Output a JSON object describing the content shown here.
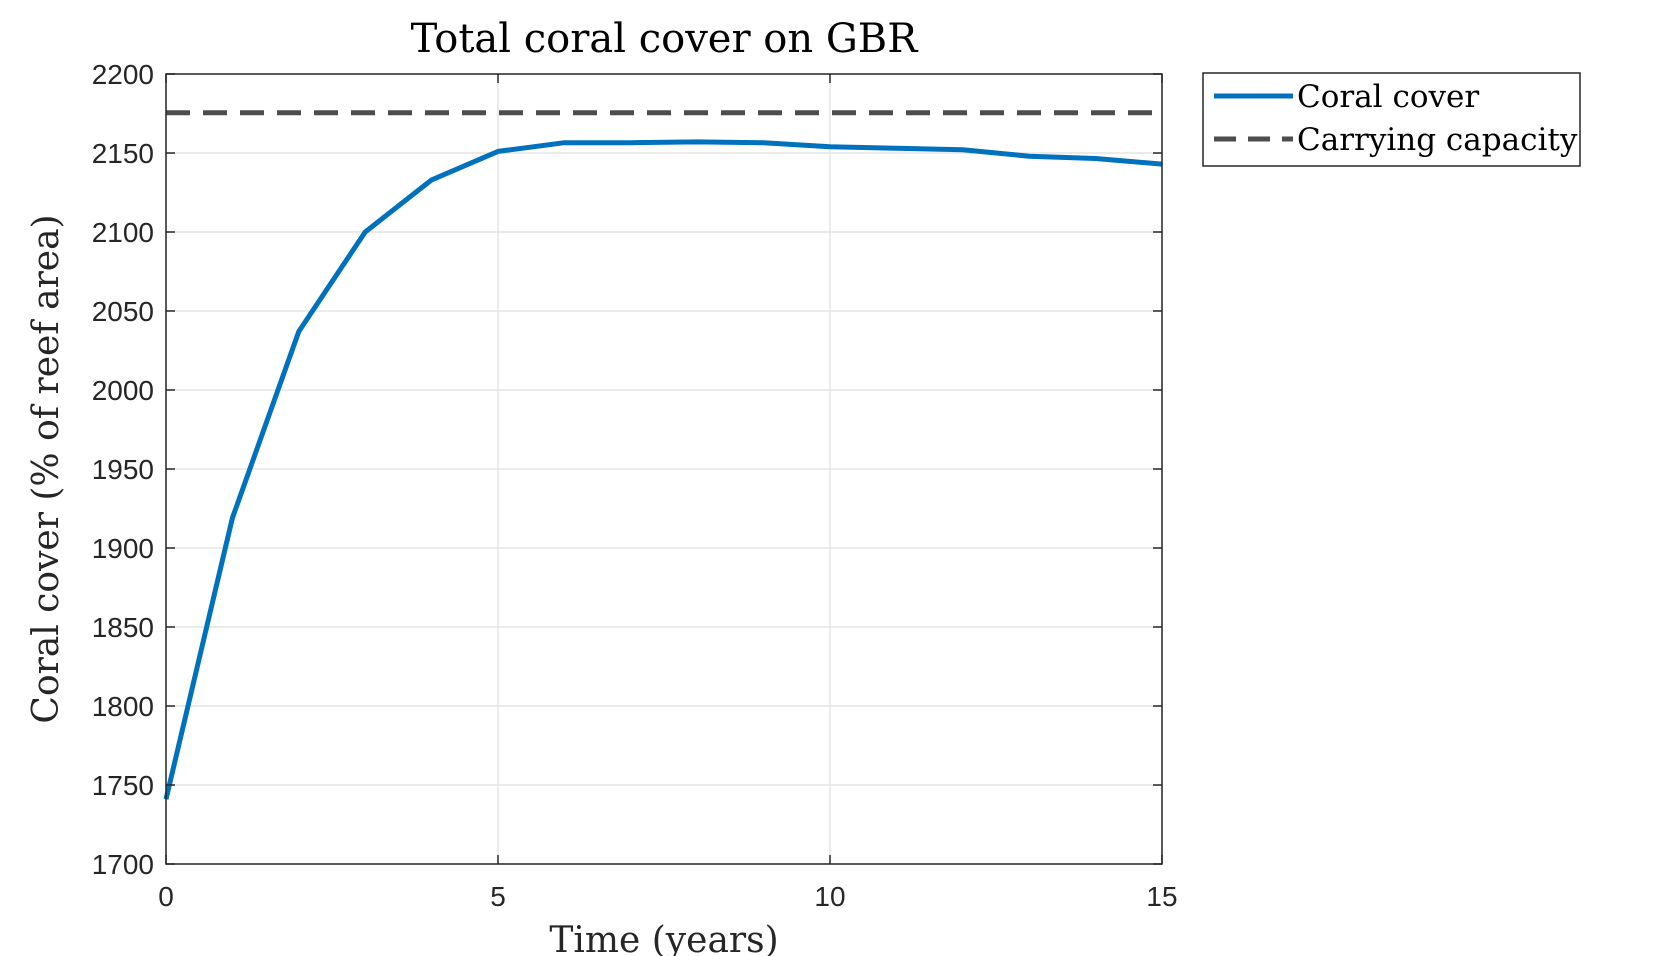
{
  "chart_data": {
    "type": "line",
    "title": "Total coral cover on GBR",
    "xlabel": "Time (years)",
    "ylabel": "Coral cover (% of reef area)",
    "xlim": [
      0,
      15
    ],
    "ylim": [
      1700,
      2200
    ],
    "xticks": [
      0,
      5,
      10,
      15
    ],
    "yticks": [
      1700,
      1750,
      1800,
      1850,
      1900,
      1950,
      2000,
      2050,
      2100,
      2150,
      2200
    ],
    "grid": true,
    "legend_position": "outside-top-right",
    "series": [
      {
        "name": "Coral cover",
        "style": "solid",
        "color": "#0072BD",
        "x": [
          0,
          1,
          2,
          3,
          4,
          5,
          6,
          7,
          8,
          9,
          10,
          11,
          12,
          13,
          14,
          15
        ],
        "y": [
          1741,
          1919,
          2037,
          2100,
          2133,
          2151,
          2156.5,
          2156.5,
          2157,
          2156.5,
          2154,
          2153,
          2152,
          2148,
          2146.5,
          2143
        ]
      },
      {
        "name": "Carrying capacity",
        "style": "dashed",
        "color": "#4D4D4D",
        "x": [
          0,
          15
        ],
        "y": [
          2175.5,
          2175.5
        ]
      }
    ]
  }
}
